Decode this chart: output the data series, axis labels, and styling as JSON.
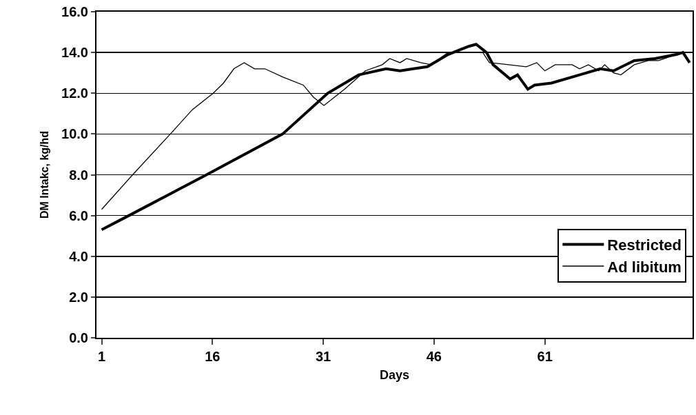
{
  "chart_data": {
    "type": "line",
    "xlabel": "Days",
    "ylabel": "DM Intakc, kg/hd",
    "xlim": [
      0.3,
      81
    ],
    "xticks": [
      1,
      16,
      31,
      46,
      61
    ],
    "ylim": [
      0,
      16
    ],
    "yticks": [
      {
        "value": 0,
        "label": "0.0"
      },
      {
        "value": 2,
        "label": "2.0"
      },
      {
        "value": 4,
        "label": "4.0"
      },
      {
        "value": 6,
        "label": "6.0"
      },
      {
        "value": 8,
        "label": "8.0"
      },
      {
        "value": 10,
        "label": "10.0"
      },
      {
        "value": 12,
        "label": "12.0"
      },
      {
        "value": 14,
        "label": "14.0"
      },
      {
        "value": 16,
        "label": "16.0"
      }
    ],
    "grid": "y",
    "legend": "bottom right",
    "marker": "none",
    "line_style": "solid",
    "series": [
      {
        "name": "Restricted",
        "color": "#000000",
        "x": [
          1,
          4.7,
          15.2,
          25.5,
          31.6,
          35.8,
          39.5,
          41.4,
          43.2,
          45.1,
          47.9,
          50.7,
          51.7,
          53.1,
          54.0,
          56.3,
          57.3,
          58.7,
          59.6,
          61.9,
          65.7,
          68.5,
          70.3,
          73.1,
          75.9,
          78.8,
          79.7,
          80.6
        ],
        "values": [
          5.3,
          6.0,
          8.0,
          10.0,
          12.0,
          12.9,
          13.2,
          13.1,
          13.2,
          13.3,
          13.9,
          14.3,
          14.4,
          14.0,
          13.4,
          12.7,
          12.9,
          12.2,
          12.4,
          12.5,
          12.9,
          13.2,
          13.1,
          13.6,
          13.7,
          13.9,
          14.0,
          13.5
        ]
      },
      {
        "name": "Ad libitum",
        "color": "#000000",
        "x": [
          1,
          5.2,
          10.3,
          13.3,
          16.1,
          17.5,
          18.9,
          20.3,
          21.7,
          23.1,
          25.5,
          28.3,
          29.7,
          31.1,
          33.9,
          36.7,
          39,
          40,
          41.4,
          42.3,
          44.2,
          45.6,
          47.9,
          52.6,
          53.5,
          54.9,
          58.5,
          59.9,
          61.0,
          62.4,
          64.7,
          65.7,
          66.9,
          68.3,
          69.1,
          70.3,
          71.3,
          73.1,
          75.0,
          76.4,
          78.8,
          79.7,
          80.6
        ],
        "values": [
          6.3,
          8.0,
          10.0,
          11.2,
          12.0,
          12.5,
          13.2,
          13.5,
          13.2,
          13.2,
          12.8,
          12.4,
          11.8,
          11.4,
          12.2,
          13.1,
          13.4,
          13.7,
          13.5,
          13.7,
          13.5,
          13.4,
          14.0,
          14.0,
          13.5,
          13.45,
          13.3,
          13.5,
          13.1,
          13.4,
          13.4,
          13.2,
          13.4,
          13.1,
          13.4,
          13.0,
          12.9,
          13.4,
          13.6,
          13.6,
          13.9,
          14.0,
          13.5
        ]
      }
    ]
  }
}
